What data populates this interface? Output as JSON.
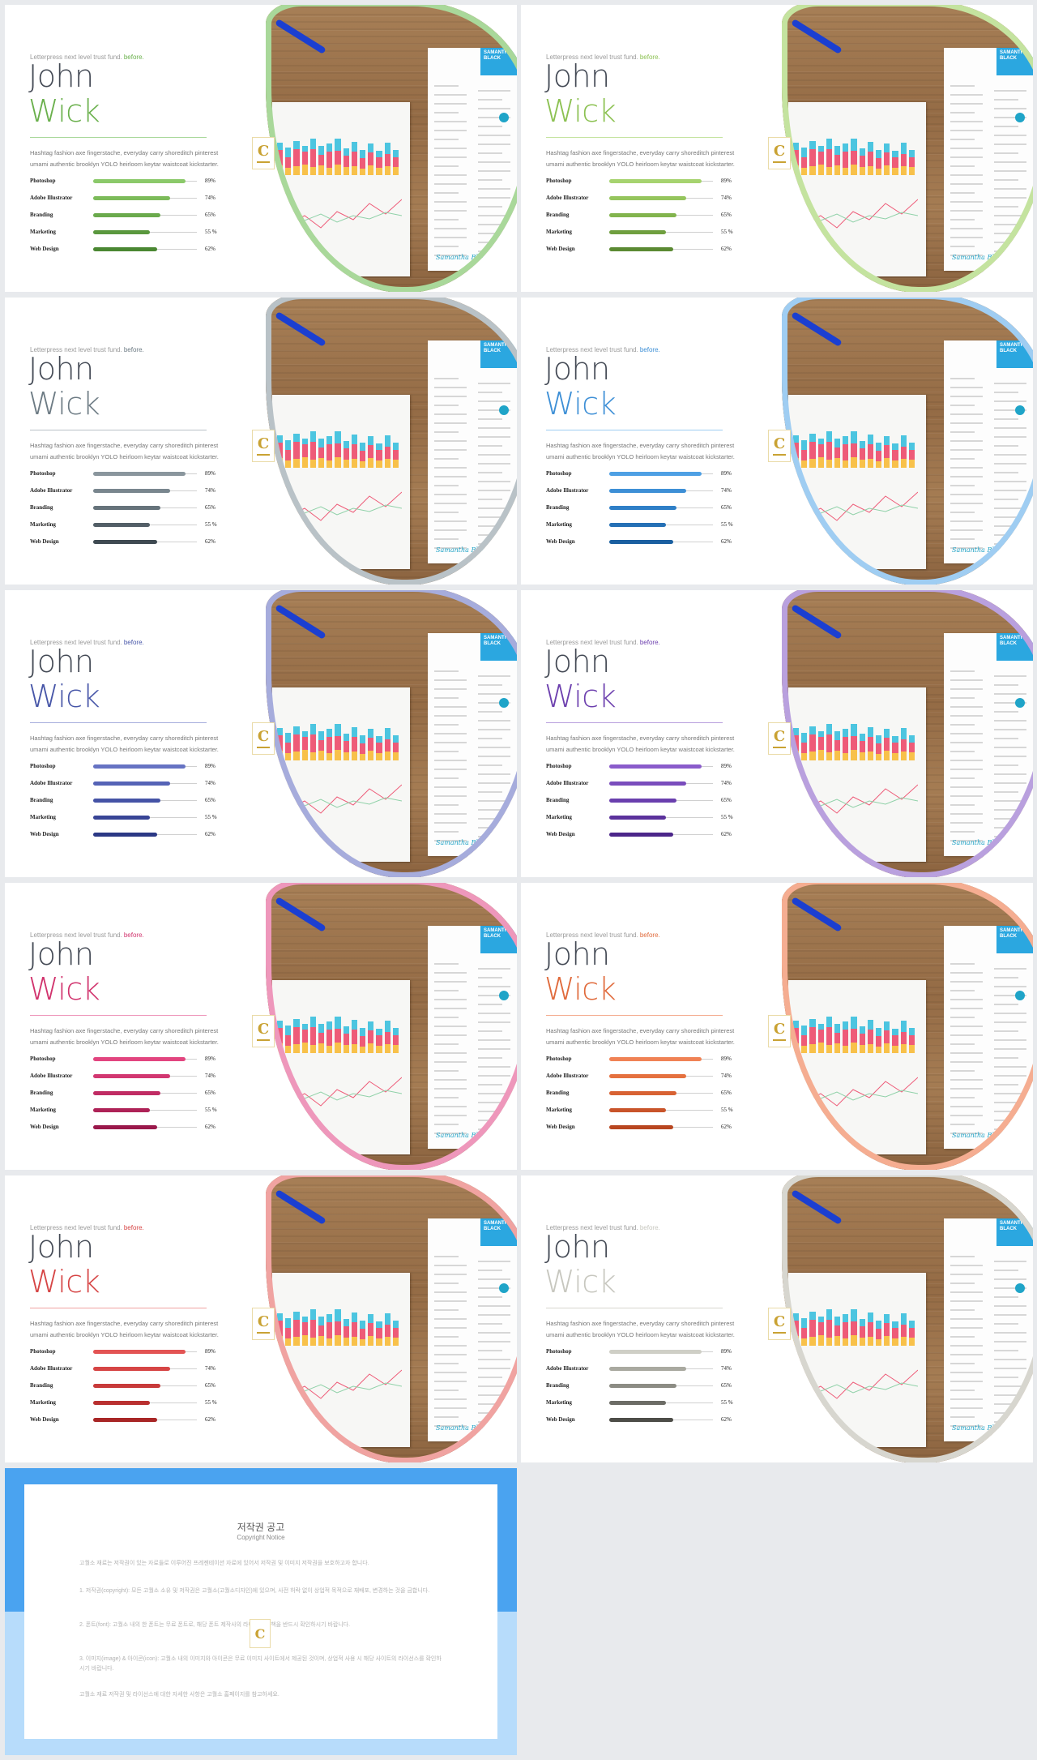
{
  "slide_template": {
    "kicker": "Letterpress next level trust fund.",
    "kicker_accent": "before.",
    "first_name": "John",
    "last_name": "Wick",
    "body": "Hashtag fashion axe fingerstache, everyday carry shoreditch pinterest umami authentic brooklyn YOLO heirloom keytar waistcoat kickstarter.",
    "skills": [
      {
        "label": "Photoshop",
        "pct_text": "89%",
        "value": 0.89
      },
      {
        "label": "Adobe Illustrator",
        "pct_text": "74%",
        "value": 0.74
      },
      {
        "label": "Branding",
        "pct_text": "65%",
        "value": 0.65
      },
      {
        "label": "Marketing",
        "pct_text": "55 %",
        "value": 0.55
      },
      {
        "label": "Web Design",
        "pct_text": "62%",
        "value": 0.62
      }
    ],
    "resume_name": "SAMANTHA BLACK",
    "signature": "Samantha Black",
    "logo_letter": "C"
  },
  "themes": [
    {
      "accent": "#6ab04c",
      "ring": "#a9d89a",
      "bars": [
        "#8bc96a",
        "#7cbb5a",
        "#6aaa4c",
        "#5a983e",
        "#4a8732"
      ]
    },
    {
      "accent": "#8cc152",
      "ring": "#c4e39f",
      "bars": [
        "#a6d36f",
        "#95c55d",
        "#82b44d",
        "#6f9f3f",
        "#5b8a33"
      ]
    },
    {
      "accent": "#6d7b84",
      "ring": "#b9c2c7",
      "bars": [
        "#8a969d",
        "#79868e",
        "#66737b",
        "#535f67",
        "#3f4a52"
      ]
    },
    {
      "accent": "#3d8fd6",
      "ring": "#9fcdf2",
      "bars": [
        "#4ea0e4",
        "#3d8fd6",
        "#2f7fc7",
        "#2570b5",
        "#1a5fa0"
      ]
    },
    {
      "accent": "#4756a8",
      "ring": "#a6acdc",
      "bars": [
        "#6673c3",
        "#5563b6",
        "#4553a6",
        "#384596",
        "#2b3885"
      ]
    },
    {
      "accent": "#6c3fae",
      "ring": "#b9a0de",
      "bars": [
        "#8a5ccb",
        "#7a4dbd",
        "#6a3fae",
        "#5b329c",
        "#4c268a"
      ]
    },
    {
      "accent": "#d1336d",
      "ring": "#ee97bb",
      "bars": [
        "#e2457f",
        "#d23771",
        "#c02c64",
        "#ae2257",
        "#9a184b"
      ]
    },
    {
      "accent": "#e06a3b",
      "ring": "#f5ad91",
      "bars": [
        "#f08255",
        "#e5713f",
        "#d86233",
        "#c9542a",
        "#b84620"
      ]
    },
    {
      "accent": "#d64545",
      "ring": "#f0a3a1",
      "bars": [
        "#e35454",
        "#d64545",
        "#c83a3a",
        "#b93030",
        "#a82626"
      ]
    },
    {
      "accent": "#c7c7bf",
      "ring": "#d7d6cf",
      "bars": [
        "#cfcfc6",
        "#a9a9a0",
        "#8c8c84",
        "#6c6c66",
        "#4d4d48"
      ]
    }
  ],
  "notice": {
    "title": "저작권 공고",
    "subtitle": "Copyright Notice",
    "p1": "고퀄소 재료는 저작권이 있는 자료들로 이루어진 프레젠테이션 자료에 있어서 저작권 및 이미지 저작권을 보호하고자 합니다.",
    "p2": "1. 저작권(copyright): 모든 고퀄소 소유 및 저작권은 고퀄소(고퀄소디자인)에 있으며, 사전 허락 없이 상업적 목적으로 재배포, 변경하는 것을 금합니다.",
    "p3": "2. 폰트(font): 고퀄소 내의 한 폰트는 무료 폰트로, 해당 폰트 제작사의 라이선스 정책을 반드시 확인하시기 바랍니다.",
    "p4": "3. 이미지(image) & 아이콘(icon): 고퀄소 내의 이미지와 아이콘은 무료 이미지 사이트에서 제공된 것이며, 상업적 사용 시 해당 사이트의 라이선스를 확인하시기 바랍니다.",
    "p5": "고퀄소 재료 저작권 및 라이선스에 대한 자세한 사항은 고퀄소 홈페이지를 참고하세요."
  }
}
